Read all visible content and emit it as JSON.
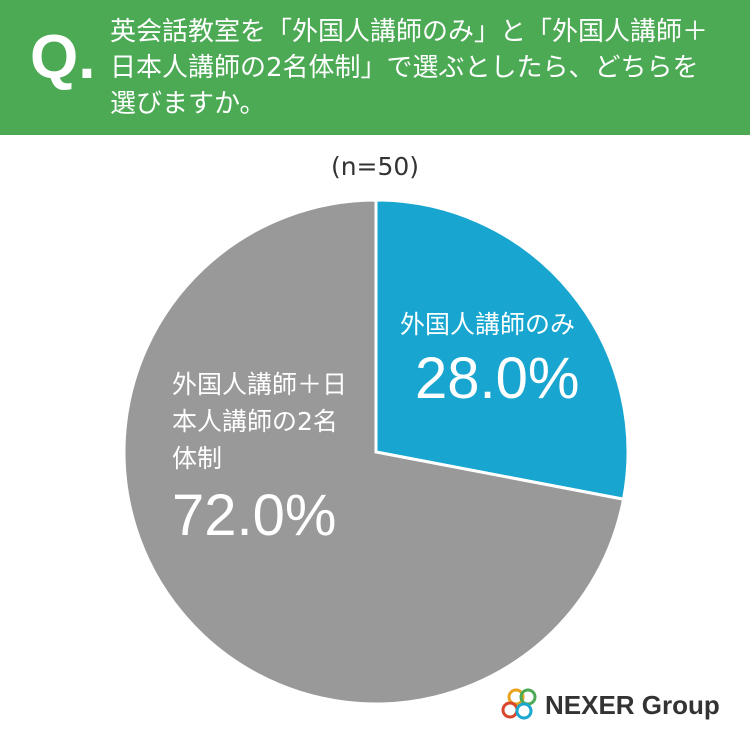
{
  "header": {
    "q": "Q.",
    "title": "英会話教室を「外国人講師のみ」と「外国人講師＋日本人講師の2名体制」で選ぶとしたら、どちらを選びますか。"
  },
  "chart_data": {
    "type": "pie",
    "subtitle": "(n=50)",
    "categories": [
      "外国人講師のみ",
      "外国人講師＋日本人講師の2名体制"
    ],
    "values": [
      28.0,
      72.0
    ],
    "value_labels": [
      "28.0%",
      "72.0%"
    ],
    "colors": [
      "#18a6d0",
      "#999999"
    ]
  },
  "logo": "NEXER Group"
}
